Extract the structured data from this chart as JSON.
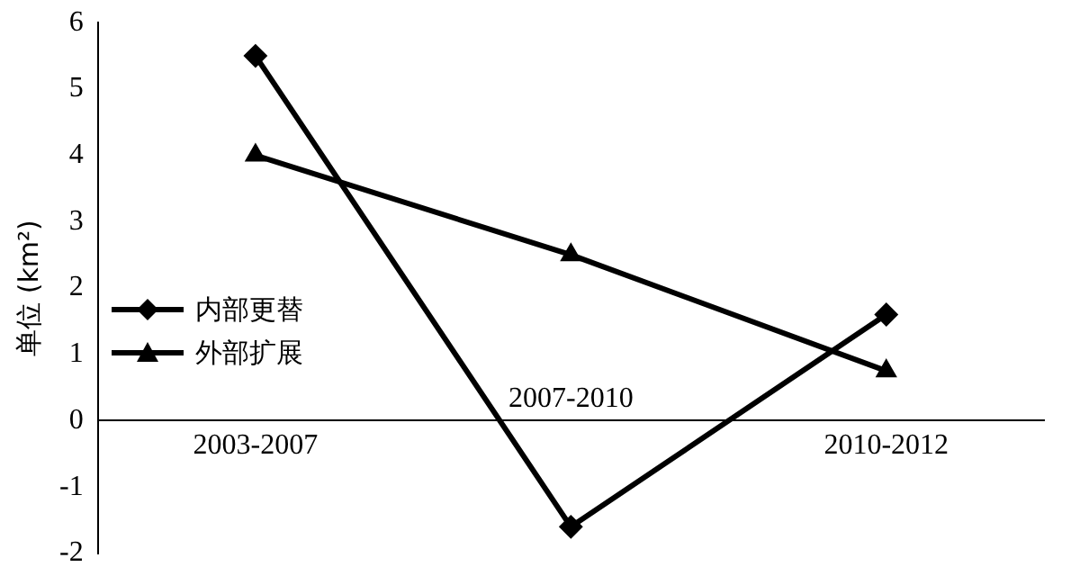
{
  "chart_data": {
    "type": "line",
    "ylabel": "单位 (km²)",
    "categories": [
      "2003-2007",
      "2007-2010",
      "2010-2012"
    ],
    "series": [
      {
        "name": "内部更替",
        "color": "#000000",
        "marker": "diamond",
        "values": [
          5.5,
          -1.6,
          1.6
        ]
      },
      {
        "name": "外部扩展",
        "color": "#000000",
        "marker": "triangle",
        "values": [
          4.0,
          2.5,
          0.75
        ]
      }
    ],
    "ylim": [
      -2,
      6
    ],
    "yticks": [
      -2,
      -1,
      0,
      1,
      2,
      3,
      4,
      5,
      6
    ],
    "grid": false,
    "legend": "left",
    "line_style": "solid"
  }
}
